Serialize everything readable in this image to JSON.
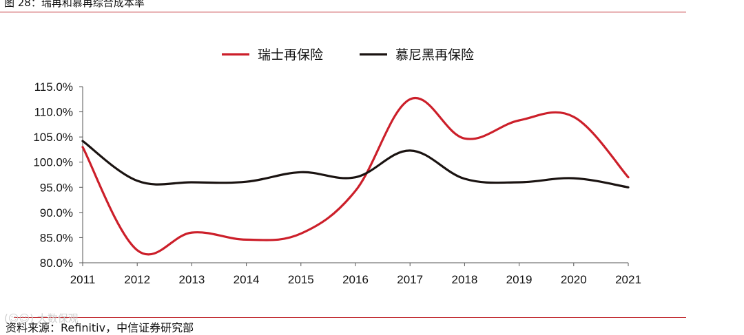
{
  "figure": {
    "title": "图 28：瑞再和慕再综合成本率",
    "source": "资料来源：Refinitiv，中信证券研究部",
    "watermark": "(☺☺) 大数保观"
  },
  "colors": {
    "accent_rule": "#c0282e"
  },
  "chart_data": {
    "type": "line",
    "categories": [
      "2011",
      "2012",
      "2013",
      "2014",
      "2015",
      "2016",
      "2017",
      "2018",
      "2019",
      "2020",
      "2021"
    ],
    "series": [
      {
        "name": "瑞士再保险",
        "color": "#cc1f2a",
        "values": [
          103.0,
          82.5,
          86.0,
          84.6,
          85.8,
          94.3,
          112.5,
          104.7,
          108.3,
          109.0,
          97.0
        ]
      },
      {
        "name": "慕尼黑再保险",
        "color": "#1a1311",
        "values": [
          104.2,
          96.3,
          96.0,
          96.1,
          98.0,
          97.0,
          102.3,
          96.7,
          96.0,
          96.8,
          95.0
        ]
      }
    ],
    "y_ticks": [
      "80.0%",
      "85.0%",
      "90.0%",
      "95.0%",
      "100.0%",
      "105.0%",
      "110.0%",
      "115.0%"
    ],
    "ylim": [
      80,
      115
    ],
    "legend_position": "top-center",
    "grid": false,
    "smooth": true
  }
}
